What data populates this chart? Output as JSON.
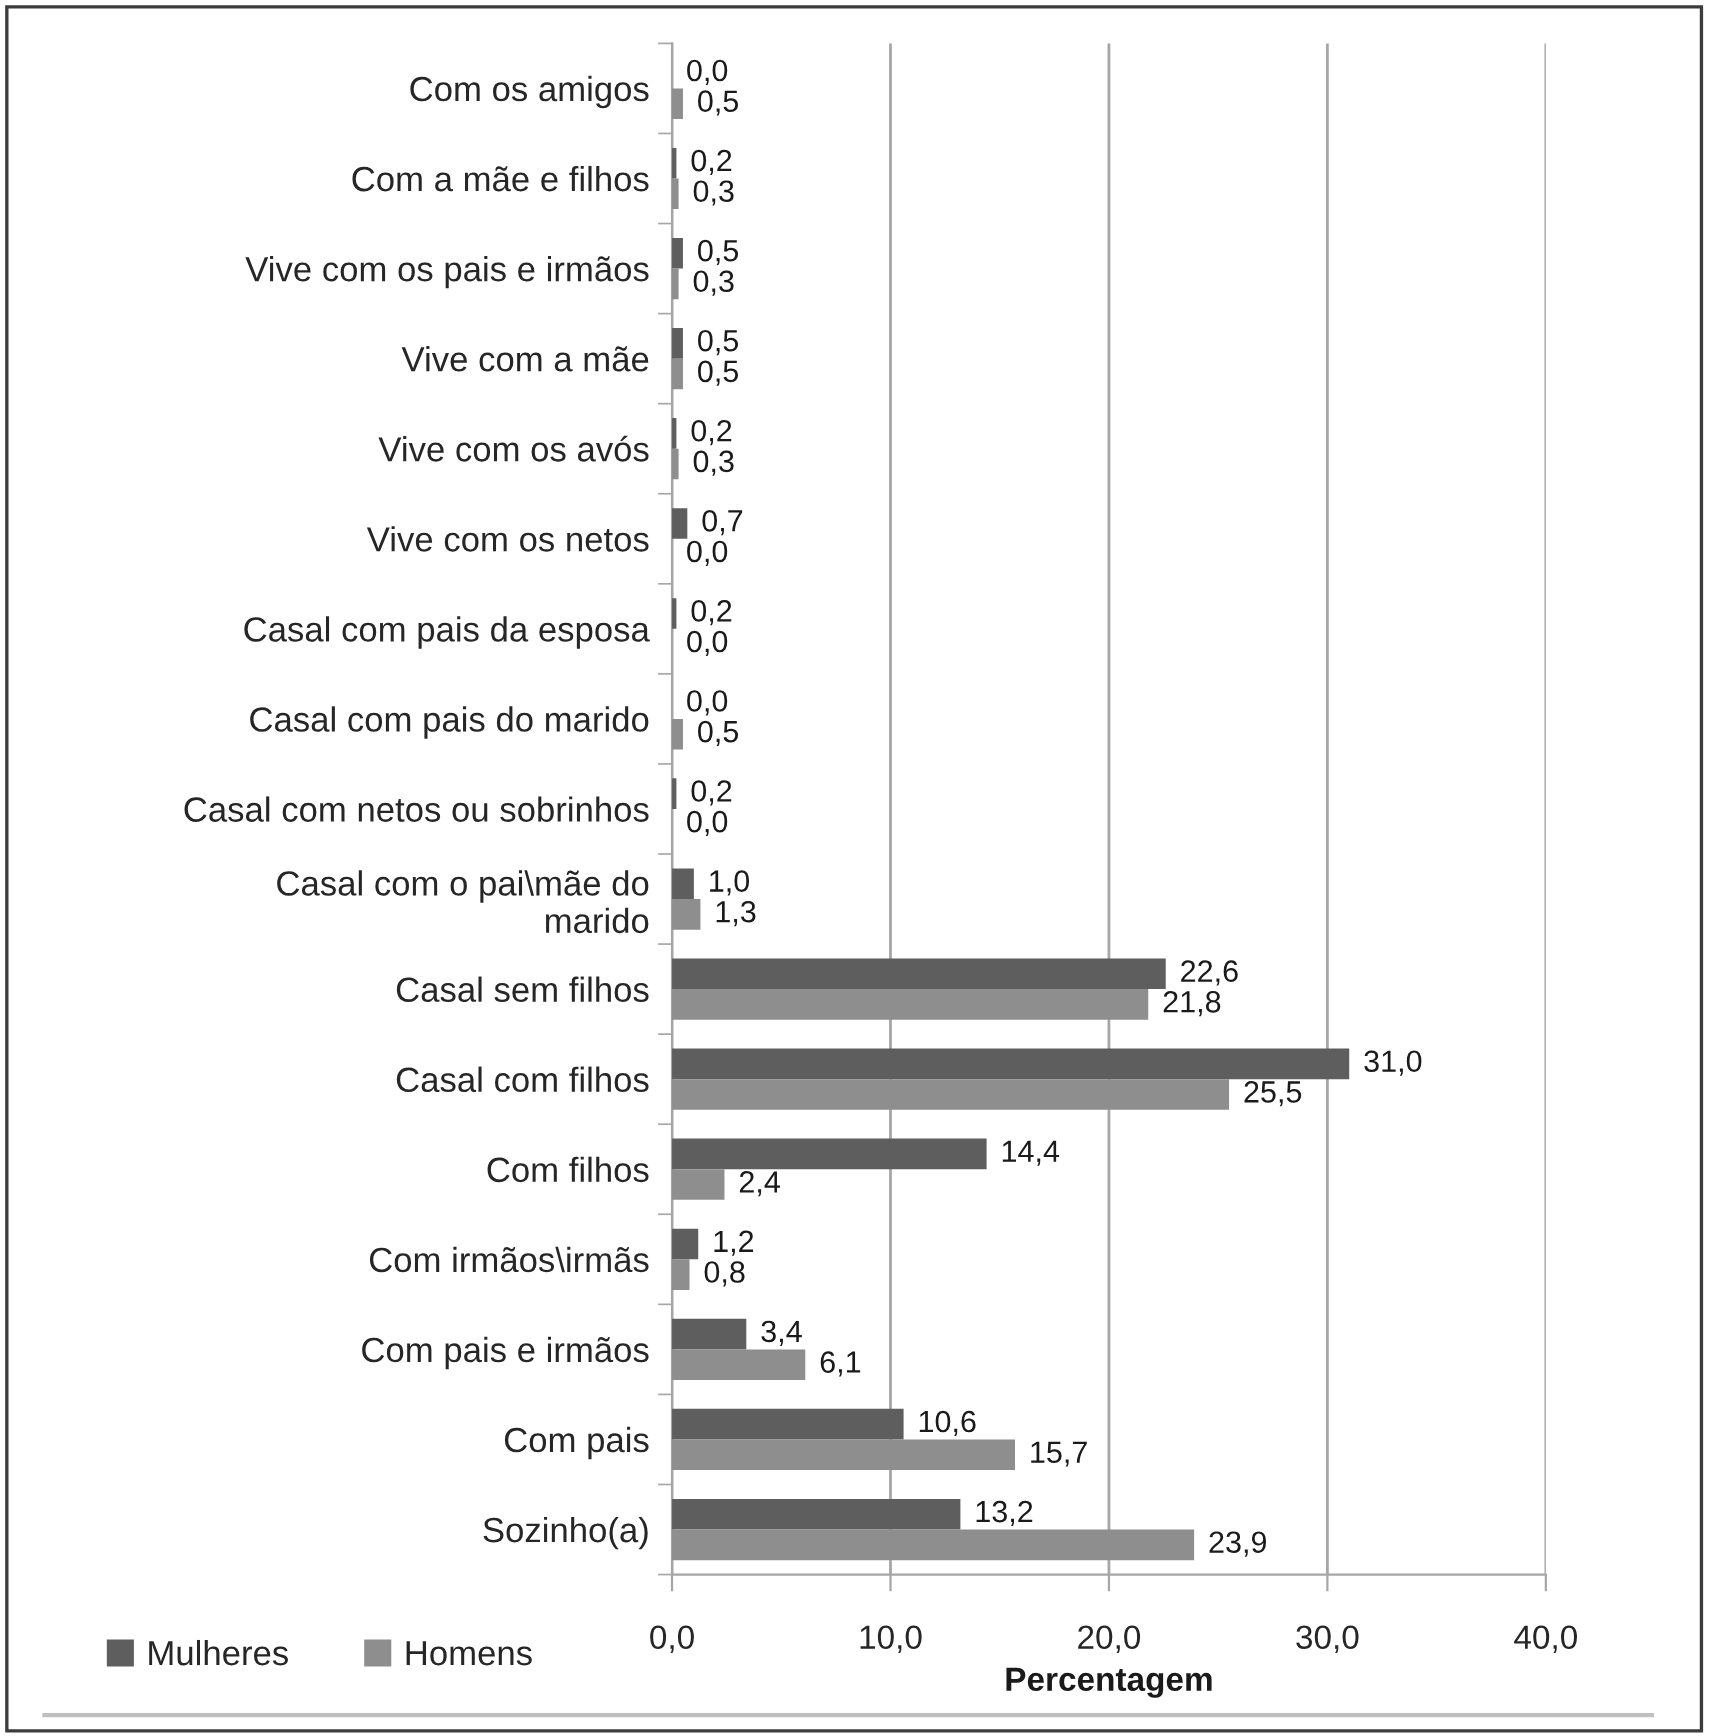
{
  "chart_data": {
    "type": "bar",
    "orientation": "horizontal",
    "xlabel": "Percentagem",
    "categories": [
      "Com os amigos",
      "Com a mãe e filhos",
      "Vive com os pais e irmãos",
      "Vive com a mãe",
      "Vive com os avós",
      "Vive com os netos",
      "Casal com pais da esposa",
      "Casal com pais do marido",
      "Casal com netos ou sobrinhos",
      "Casal com o pai\\mãe do\nmarido",
      "Casal sem filhos",
      "Casal com filhos",
      "Com filhos",
      "Com irmãos\\irmãs",
      "Com pais e irmãos",
      "Com pais",
      "Sozinho(a)"
    ],
    "series": [
      {
        "name": "Mulheres",
        "color": "#5e5e5e",
        "values": [
          0.0,
          0.2,
          0.5,
          0.5,
          0.2,
          0.7,
          0.2,
          0.0,
          0.2,
          1.0,
          22.6,
          31.0,
          14.4,
          1.2,
          3.4,
          10.6,
          13.2
        ],
        "value_labels": [
          "0,0",
          "0,2",
          "0,5",
          "0,5",
          "0,2",
          "0,7",
          "0,2",
          "0,0",
          "0,2",
          "1,0",
          "22,6",
          "31,0",
          "14,4",
          "1,2",
          "3,4",
          "10,6",
          "13,2"
        ]
      },
      {
        "name": "Homens",
        "color": "#8e8e8e",
        "values": [
          0.5,
          0.3,
          0.3,
          0.5,
          0.3,
          0.0,
          0.0,
          0.5,
          0.0,
          1.3,
          21.8,
          25.5,
          2.4,
          0.8,
          6.1,
          15.7,
          23.9
        ],
        "value_labels": [
          "0,5",
          "0,3",
          "0,3",
          "0,5",
          "0,3",
          "0,0",
          "0,0",
          "0,5",
          "0,0",
          "1,3",
          "21,8",
          "25,5",
          "2,4",
          "0,8",
          "6,1",
          "15,7",
          "23,9"
        ]
      }
    ],
    "xlim": [
      0,
      40
    ],
    "xticks": [
      {
        "value": 0,
        "label": "0,0"
      },
      {
        "value": 10,
        "label": "10,0"
      },
      {
        "value": 20,
        "label": "20,0"
      },
      {
        "value": 30,
        "label": "30,0"
      },
      {
        "value": 40,
        "label": "40,0"
      }
    ],
    "grid": "x",
    "legend": "bottom left"
  }
}
